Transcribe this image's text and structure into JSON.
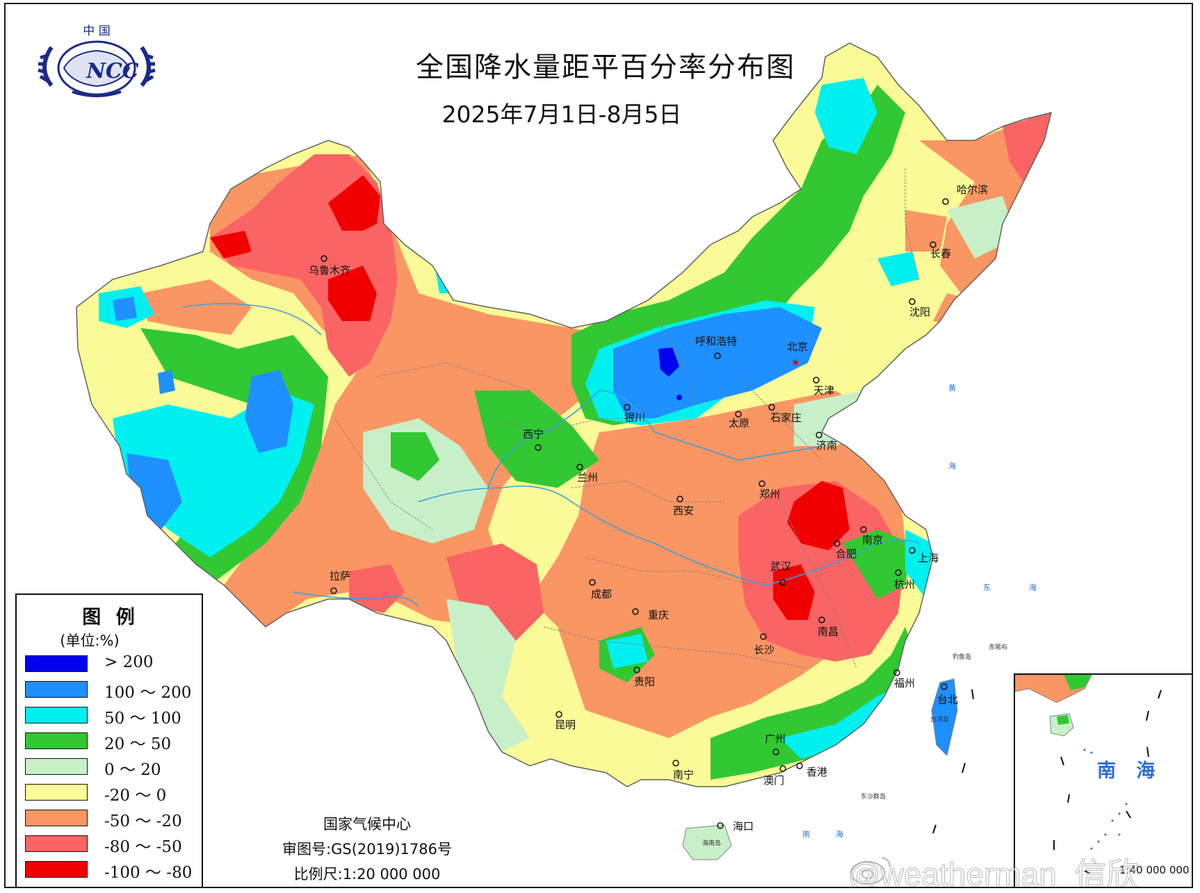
{
  "header": {
    "title": "全国降水量距平百分率分布图",
    "subtitle": "2025年7月1日-8月5日",
    "logo_text": "中 国",
    "logo_abbrev": "NCC"
  },
  "colors": {
    "gt200": "#0000f0",
    "100_200": "#1e90ff",
    "50_100": "#00f0f0",
    "20_50": "#32c832",
    "0_20": "#c8f0c8",
    "m20_0": "#fafa96",
    "m50_m20": "#fa9664",
    "m80_m50": "#fa6464",
    "m100_m80": "#f00000",
    "river": "#3aa0e0",
    "border": "#808080"
  },
  "legend": {
    "title": "图 例",
    "unit": "(单位:%)",
    "items": [
      {
        "label": "> 200",
        "color": "#0000f0"
      },
      {
        "label": "100 ～ 200",
        "color": "#1e90ff"
      },
      {
        "label": "50 ～ 100",
        "color": "#00f0f0"
      },
      {
        "label": "20 ～ 50",
        "color": "#32c832"
      },
      {
        "label": "0 ～ 20",
        "color": "#c8f0c8"
      },
      {
        "label": "-20 ～ 0",
        "color": "#fafa96"
      },
      {
        "label": "-50 ～ -20",
        "color": "#fa9664"
      },
      {
        "label": "-80 ～ -50",
        "color": "#fa6464"
      },
      {
        "label": "-100 ～ -80",
        "color": "#f00000"
      }
    ]
  },
  "cities": {
    "urumqi": "乌鲁木齐",
    "harbin": "哈尔滨",
    "changchun": "长春",
    "shenyang": "沈阳",
    "hohhot": "呼和浩特",
    "beijing": "北京",
    "tianjin": "天津",
    "shijiazhuang": "石家庄",
    "taiyuan": "太原",
    "yinchuan": "银川",
    "xining": "西宁",
    "lanzhou": "兰州",
    "jinan": "济南",
    "zhengzhou": "郑州",
    "xian": "西安",
    "nanjing": "南京",
    "hefei": "合肥",
    "shanghai": "上海",
    "wuhan": "武汉",
    "hangzhou": "杭州",
    "lhasa": "拉萨",
    "chengdu": "成都",
    "chongqing": "重庆",
    "nanchang": "南昌",
    "changsha": "长沙",
    "guiyang": "贵阳",
    "fuzhou": "福州",
    "taipei": "台北",
    "kunming": "昆明",
    "guangzhou": "广州",
    "nanning": "南宁",
    "hongkong": "香港",
    "macau": "澳门",
    "haikou": "海口"
  },
  "sea_labels": {
    "huang": "黄",
    "hai1": "海",
    "dong": "东",
    "hai2": "海",
    "nan": "南",
    "hai3": "海",
    "diaoyu": "钓鱼岛",
    "chiwei": "赤尾屿",
    "dongsha": "东沙群岛",
    "taiwan": "台湾岛",
    "hainan": "海南岛"
  },
  "footer": {
    "org": "国家气候中心",
    "review_no": "审图号:GS(2019)1786号",
    "scale": "比例尺:1:20 000 000"
  },
  "inset": {
    "title": "南 海",
    "scale": "1:40 000 000"
  },
  "watermark": "@weatherman_信欣"
}
